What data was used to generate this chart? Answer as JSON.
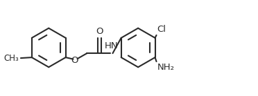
{
  "background_color": "#ffffff",
  "line_color": "#2a2a2a",
  "line_width": 1.5,
  "text_color": "#2a2a2a",
  "label_fontsize": 8.5,
  "fig_width": 3.72,
  "fig_height": 1.39,
  "dpi": 100,
  "xlim": [
    0,
    3.72
  ],
  "ylim": [
    0,
    1.39
  ]
}
